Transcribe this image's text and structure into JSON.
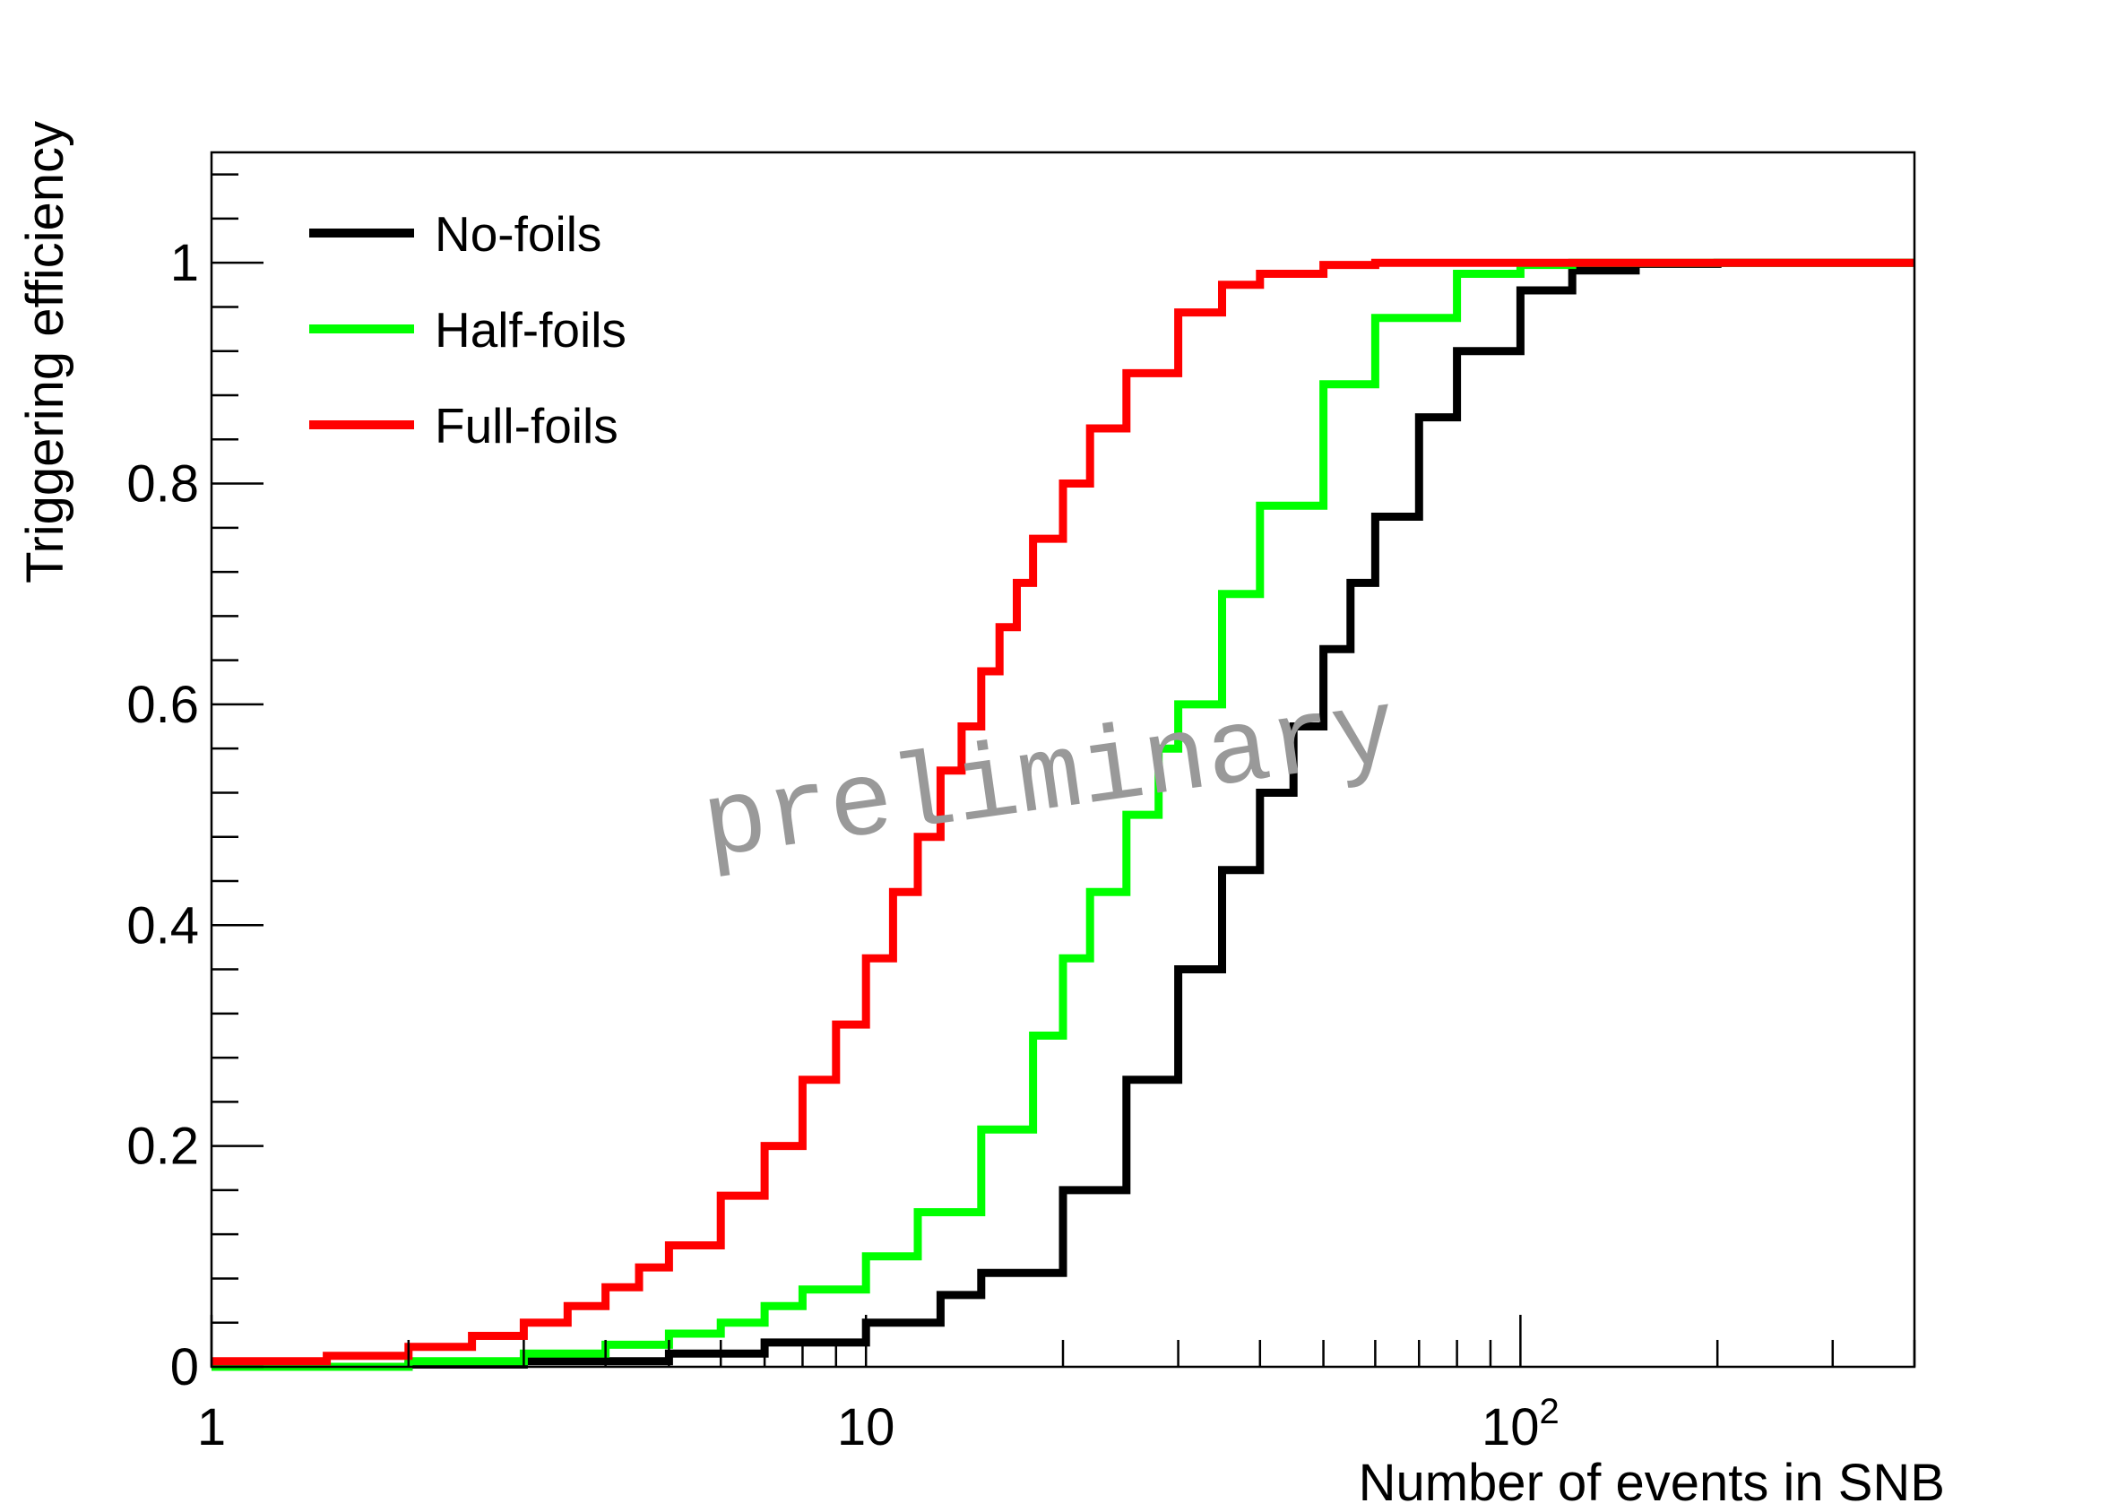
{
  "chart_data": {
    "type": "line",
    "step": true,
    "xlabel": "Number of events in SNB",
    "ylabel": "Triggering efficiency",
    "xscale": "log",
    "xlim": [
      1,
      400
    ],
    "ylim": [
      0,
      1.1
    ],
    "x_tick_labels": [
      {
        "value": 1,
        "label": "1"
      },
      {
        "value": 10,
        "label": "10"
      },
      {
        "value": 100,
        "label": "10",
        "exponent": "2"
      }
    ],
    "y_tick_labels": [
      {
        "value": 0,
        "label": "0"
      },
      {
        "value": 0.2,
        "label": "0.2"
      },
      {
        "value": 0.4,
        "label": "0.4"
      },
      {
        "value": 0.6,
        "label": "0.6"
      },
      {
        "value": 0.8,
        "label": "0.8"
      },
      {
        "value": 1,
        "label": "1"
      }
    ],
    "grid": false,
    "legend_position": "top-left",
    "watermark": "preliminary",
    "series": [
      {
        "name": "No-foils",
        "color": "#000000",
        "x": [
          1,
          2,
          3,
          5,
          7,
          10,
          13,
          15,
          20,
          25,
          30,
          35,
          40,
          45,
          50,
          55,
          60,
          70,
          80,
          100,
          120,
          150,
          200,
          400
        ],
        "y": [
          0.0,
          0.002,
          0.005,
          0.012,
          0.022,
          0.04,
          0.065,
          0.085,
          0.16,
          0.26,
          0.36,
          0.45,
          0.52,
          0.58,
          0.65,
          0.71,
          0.77,
          0.86,
          0.92,
          0.975,
          0.993,
          0.999,
          1.0,
          1.0
        ]
      },
      {
        "name": "Half-foils",
        "color": "#00ff00",
        "x": [
          1,
          2,
          3,
          4,
          5,
          6,
          7,
          8,
          10,
          12,
          15,
          18,
          20,
          22,
          25,
          28,
          30,
          35,
          40,
          50,
          60,
          80,
          100,
          120,
          150,
          400
        ],
        "y": [
          0.0,
          0.005,
          0.012,
          0.02,
          0.03,
          0.04,
          0.055,
          0.07,
          0.1,
          0.14,
          0.215,
          0.3,
          0.37,
          0.43,
          0.5,
          0.56,
          0.6,
          0.7,
          0.78,
          0.89,
          0.95,
          0.99,
          0.998,
          1.0,
          1.0,
          1.0
        ]
      },
      {
        "name": "Full-foils",
        "color": "#ff0000",
        "x": [
          1,
          1.5,
          2,
          2.5,
          3,
          3.5,
          4,
          4.5,
          5,
          6,
          7,
          8,
          9,
          10,
          11,
          12,
          13,
          14,
          15,
          16,
          17,
          18,
          20,
          22,
          25,
          30,
          35,
          40,
          50,
          60,
          400
        ],
        "y": [
          0.005,
          0.01,
          0.018,
          0.028,
          0.04,
          0.055,
          0.072,
          0.09,
          0.11,
          0.155,
          0.2,
          0.26,
          0.31,
          0.37,
          0.43,
          0.48,
          0.54,
          0.58,
          0.63,
          0.67,
          0.71,
          0.75,
          0.8,
          0.85,
          0.9,
          0.955,
          0.98,
          0.99,
          0.998,
          1.0,
          1.0
        ]
      }
    ]
  }
}
